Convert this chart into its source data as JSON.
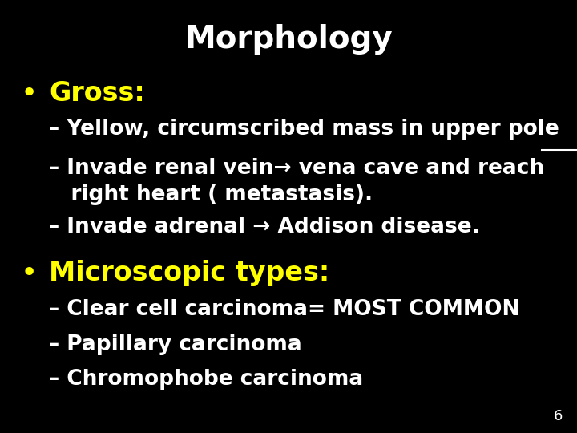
{
  "title": "Morphology",
  "title_color": "#ffffff",
  "title_fontsize": 28,
  "background_color": "#000000",
  "bullet_color": "#ffff00",
  "bullet1_label": "Gross:",
  "bullet2_label": "Microscopic types:",
  "bullet_fontsize": 24,
  "sub_color": "#ffffff",
  "sub_fontsize": 19,
  "gross_line1_prefix": "– Yellow, circumscribed mass in ",
  "gross_line1_underline": "upper pole",
  "gross_line2": "– Invade renal vein→ vena cave and reach\n   right heart ( metastasis).",
  "gross_line3": "– Invade adrenal → Addison disease.",
  "micro_items": [
    "– Clear cell carcinoma= MOST COMMON",
    "– Papillary carcinoma",
    "– Chromophobe carcinoma"
  ],
  "page_number": "6",
  "page_color": "#ffffff",
  "page_fontsize": 13
}
